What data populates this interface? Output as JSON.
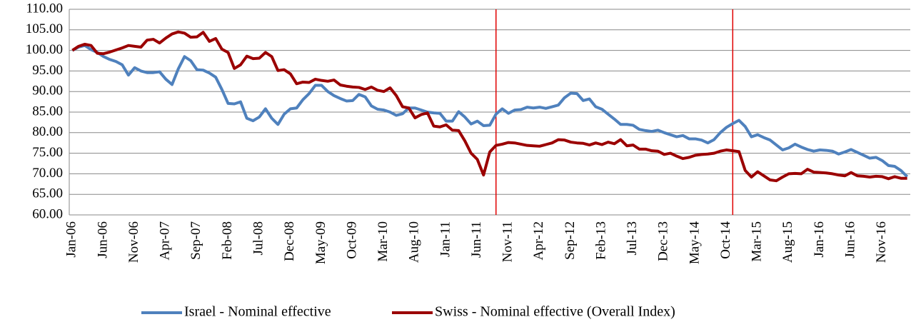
{
  "chart_data": {
    "type": "line",
    "categories": [
      "Jan-06",
      null,
      null,
      null,
      null,
      "Jun-06",
      null,
      null,
      null,
      null,
      "Nov-06",
      null,
      null,
      null,
      null,
      "Apr-07",
      null,
      null,
      null,
      null,
      "Sep-07",
      null,
      null,
      null,
      null,
      "Feb-08",
      null,
      null,
      null,
      null,
      "Jul-08",
      null,
      null,
      null,
      null,
      "Dec-08",
      null,
      null,
      null,
      null,
      "May-09",
      null,
      null,
      null,
      null,
      "Oct-09",
      null,
      null,
      null,
      null,
      "Mar-10",
      null,
      null,
      null,
      null,
      "Aug-10",
      null,
      null,
      null,
      null,
      "Jan-11",
      null,
      null,
      null,
      null,
      "Jun-11",
      null,
      null,
      null,
      null,
      "Nov-11",
      null,
      null,
      null,
      null,
      "Apr-12",
      null,
      null,
      null,
      null,
      "Sep-12",
      null,
      null,
      null,
      null,
      "Feb-13",
      null,
      null,
      null,
      null,
      "Jul-13",
      null,
      null,
      null,
      null,
      "Dec-13",
      null,
      null,
      null,
      null,
      "May-14",
      null,
      null,
      null,
      null,
      "Oct-14",
      null,
      null,
      null,
      null,
      "Mar-15",
      null,
      null,
      null,
      null,
      "Aug-15",
      null,
      null,
      null,
      null,
      "Jan-16",
      null,
      null,
      null,
      null,
      "Jun-16",
      null,
      null,
      null,
      null,
      "Nov-16",
      null,
      null,
      null,
      null
    ],
    "series": [
      {
        "name": "Israel - Nominal effective",
        "color": "#4f81bd",
        "values": [
          100,
          100.8,
          101.2,
          100.2,
          99.5,
          98.5,
          97.8,
          97.3,
          96.5,
          94.0,
          95.8,
          95.0,
          94.6,
          94.6,
          94.8,
          93.0,
          91.7,
          95.5,
          98.5,
          97.5,
          95.3,
          95.2,
          94.5,
          93.5,
          90.5,
          87.1,
          87.0,
          87.5,
          83.5,
          82.9,
          83.8,
          85.8,
          83.5,
          82.0,
          84.5,
          85.8,
          86.0,
          88.0,
          89.5,
          91.5,
          91.5,
          90.0,
          89.0,
          88.3,
          87.7,
          87.8,
          89.3,
          88.7,
          86.5,
          85.7,
          85.5,
          85.0,
          84.2,
          84.6,
          86.0,
          86.0,
          85.5,
          85.0,
          84.8,
          84.7,
          82.8,
          82.8,
          85.1,
          83.8,
          82.1,
          82.8,
          81.7,
          81.8,
          84.5,
          85.8,
          84.7,
          85.5,
          85.6,
          86.2,
          86.0,
          86.2,
          85.9,
          86.3,
          86.7,
          88.5,
          89.6,
          89.5,
          87.8,
          88.2,
          86.3,
          85.7,
          84.5,
          83.3,
          82.0,
          82.0,
          81.8,
          80.8,
          80.5,
          80.3,
          80.6,
          80.0,
          79.5,
          79.0,
          79.3,
          78.5,
          78.5,
          78.2,
          77.5,
          78.3,
          80.0,
          81.3,
          82.2,
          83.0,
          81.5,
          79.0,
          79.5,
          78.8,
          78.2,
          77.0,
          75.8,
          76.3,
          77.2,
          76.5,
          75.9,
          75.5,
          75.8,
          75.7,
          75.5,
          74.8,
          75.3,
          75.9,
          75.2,
          74.5,
          73.8,
          74.0,
          73.2,
          72.0,
          71.8,
          70.8,
          69.3
        ]
      },
      {
        "name": "Swiss - Nominal effective (Overall Index)",
        "color": "#9b0000",
        "values": [
          100,
          101.0,
          101.5,
          101.2,
          99.3,
          99.2,
          99.6,
          100.1,
          100.6,
          101.2,
          101.0,
          100.8,
          102.5,
          102.7,
          101.8,
          103.0,
          104.0,
          104.5,
          104.2,
          103.2,
          103.3,
          104.4,
          102.2,
          102.9,
          100.3,
          99.5,
          95.6,
          96.5,
          98.6,
          98.0,
          98.1,
          99.5,
          98.5,
          95.1,
          95.3,
          94.3,
          91.9,
          92.3,
          92.2,
          93.0,
          92.7,
          92.5,
          92.8,
          91.6,
          91.3,
          91.1,
          91.0,
          90.5,
          91.1,
          90.3,
          90.0,
          90.9,
          89.0,
          86.3,
          86.0,
          83.6,
          84.4,
          84.8,
          81.6,
          81.4,
          81.9,
          80.6,
          80.5,
          78.0,
          75.0,
          73.5,
          69.7,
          75.3,
          76.9,
          77.2,
          77.6,
          77.5,
          77.2,
          76.9,
          76.8,
          76.7,
          77.1,
          77.5,
          78.3,
          78.2,
          77.7,
          77.5,
          77.4,
          77.0,
          77.5,
          77.1,
          77.7,
          77.3,
          78.3,
          76.8,
          77.0,
          76.0,
          76.0,
          75.6,
          75.5,
          74.7,
          75.0,
          74.3,
          73.7,
          74.0,
          74.5,
          74.7,
          74.8,
          75.0,
          75.5,
          75.8,
          75.6,
          75.4,
          70.8,
          69.2,
          70.5,
          69.5,
          68.5,
          68.3,
          69.2,
          70.0,
          70.1,
          70.0,
          71.1,
          70.4,
          70.3,
          70.2,
          70.0,
          69.7,
          69.5,
          70.3,
          69.5,
          69.4,
          69.2,
          69.4,
          69.3,
          68.8,
          69.3,
          68.9,
          68.9
        ]
      }
    ],
    "ylim": [
      60,
      110
    ],
    "yticks": [
      {
        "value": 60,
        "label": "60.00"
      },
      {
        "value": 65,
        "label": "65.00"
      },
      {
        "value": 70,
        "label": "70.00"
      },
      {
        "value": 75,
        "label": "75.00"
      },
      {
        "value": 80,
        "label": "80.00"
      },
      {
        "value": 85,
        "label": "85.00"
      },
      {
        "value": 90,
        "label": "90.00"
      },
      {
        "value": 95,
        "label": "95.00"
      },
      {
        "value": 100,
        "label": "100.00"
      },
      {
        "value": 105,
        "label": "105.00"
      },
      {
        "value": 110,
        "label": "110.00"
      }
    ],
    "grid": true,
    "legend": "bottom",
    "vertical_lines": [
      {
        "index": 68,
        "color": "#e00000"
      },
      {
        "index": 106,
        "color": "#e00000"
      }
    ]
  }
}
